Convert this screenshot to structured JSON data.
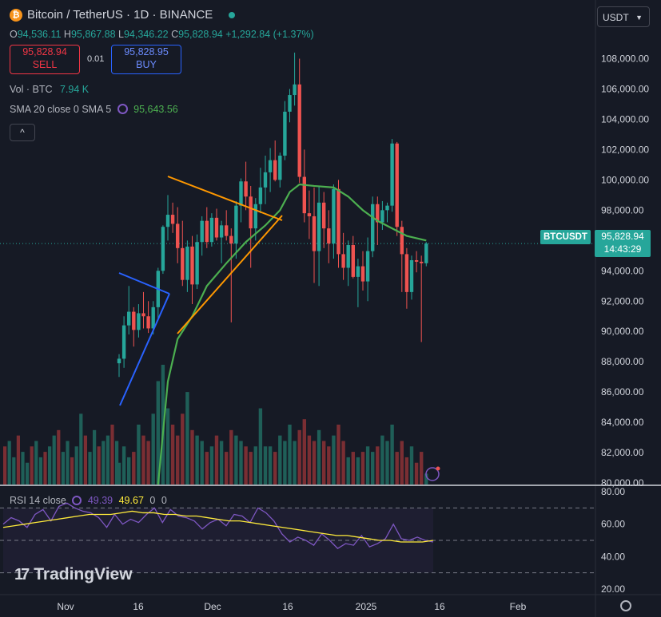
{
  "header": {
    "coin_glyph": "₿",
    "title": "Bitcoin / TetherUS · 1D · BINANCE",
    "ohlc": {
      "o_label": "O",
      "o": "94,536.11",
      "h_label": "H",
      "h": "95,867.88",
      "l_label": "L",
      "l": "94,346.22",
      "c_label": "C",
      "c": "95,828.94",
      "change": "+1,292.84 (+1.37%)"
    },
    "sell": {
      "price": "95,828.94",
      "label": "SELL"
    },
    "buy": {
      "price": "95,828.95",
      "label": "BUY"
    },
    "spread": "0.01",
    "vol_label": "Vol · BTC",
    "vol_value": "7.94 K",
    "sma_label": "SMA 20 close 0 SMA 5",
    "sma_value": "95,643.56",
    "collapse_glyph": "^"
  },
  "currency": {
    "value": "USDT"
  },
  "price_tag": {
    "symbol": "BTCUSDT",
    "price": "95,828.94",
    "countdown": "14:43:29"
  },
  "rsi": {
    "label": "RSI 14 close",
    "v1": "49.39",
    "v2": "49.67",
    "v3": "0",
    "v4": "0"
  },
  "logo": {
    "mark": "17",
    "text": "TradingView"
  },
  "colors": {
    "up": "#26a69a",
    "down": "#ef5350",
    "sma": "#4caf50",
    "rsi": "#7e57c2",
    "rsi_ma": "#ffeb3b",
    "bg": "#161a25"
  },
  "chart_data": [
    {
      "type": "candlestick",
      "title": "Bitcoin / TetherUS · 1D · BINANCE",
      "y_ticks": [
        "80,000.00",
        "82,000.00",
        "84,000.00",
        "86,000.00",
        "88,000.00",
        "90,000.00",
        "92,000.00",
        "94,000.00",
        "96,000.00",
        "98,000.00",
        "100,000.00",
        "102,000.00",
        "104,000.00",
        "106,000.00",
        "108,000.00"
      ],
      "y_tick_values": [
        80000,
        82000,
        84000,
        86000,
        88000,
        90000,
        92000,
        94000,
        96000,
        98000,
        100000,
        102000,
        104000,
        106000,
        108000
      ],
      "ylim": [
        79900,
        109500
      ],
      "x_ticks": [
        "Nov",
        "16",
        "Dec",
        "16",
        "2025",
        "16",
        "Feb"
      ],
      "grid": false,
      "candles_ohlc": [
        [
          87900,
          88500,
          87000,
          88200
        ],
        [
          88200,
          91000,
          87600,
          90400
        ],
        [
          90400,
          93000,
          89800,
          91300
        ],
        [
          91300,
          91600,
          89000,
          90100
        ],
        [
          90100,
          91800,
          89600,
          91200
        ],
        [
          91200,
          92600,
          90200,
          91000
        ],
        [
          91000,
          92000,
          89900,
          90200
        ],
        [
          90200,
          92000,
          89800,
          91600
        ],
        [
          91600,
          94200,
          90800,
          94000
        ],
        [
          94000,
          97000,
          93800,
          96900
        ],
        [
          96900,
          99000,
          96000,
          97700
        ],
        [
          97700,
          98500,
          96500,
          97100
        ],
        [
          97100,
          98200,
          94500,
          95500
        ],
        [
          95500,
          97300,
          93000,
          93400
        ],
        [
          93400,
          96000,
          92600,
          95600
        ],
        [
          95600,
          96300,
          91800,
          93100
        ],
        [
          93100,
          96400,
          92800,
          95900
        ],
        [
          95900,
          97600,
          95000,
          97300
        ],
        [
          97300,
          98200,
          95500,
          95900
        ],
        [
          95900,
          97800,
          95600,
          97500
        ],
        [
          97500,
          98100,
          96000,
          96200
        ],
        [
          96200,
          97300,
          94500,
          97000
        ],
        [
          97000,
          98000,
          96000,
          96300
        ],
        [
          96300,
          96800,
          90600,
          95800
        ],
        [
          95800,
          98600,
          94800,
          98300
        ],
        [
          98300,
          100100,
          97200,
          99900
        ],
        [
          99900,
          101200,
          98000,
          98900
        ],
        [
          98900,
          99600,
          94200,
          96800
        ],
        [
          96800,
          98800,
          96000,
          98400
        ],
        [
          98400,
          100800,
          97800,
          99500
        ],
        [
          99500,
          101600,
          98400,
          100500
        ],
        [
          100500,
          102100,
          99200,
          101300
        ],
        [
          101300,
          102600,
          99900,
          100000
        ],
        [
          100000,
          101800,
          99500,
          101600
        ],
        [
          101600,
          105200,
          101300,
          104500
        ],
        [
          104500,
          106000,
          103800,
          105600
        ],
        [
          105600,
          108400,
          104900,
          106300
        ],
        [
          106300,
          108000,
          99800,
          100200
        ],
        [
          100200,
          102000,
          97200,
          97800
        ],
        [
          97800,
          99300,
          96100,
          97600
        ],
        [
          97600,
          99500,
          93200,
          95300
        ],
        [
          95300,
          99600,
          93000,
          98500
        ],
        [
          98500,
          99200,
          95500,
          96800
        ],
        [
          96800,
          98000,
          94500,
          95800
        ],
        [
          95800,
          99700,
          94800,
          99400
        ],
        [
          99400,
          100000,
          94200,
          95100
        ],
        [
          95100,
          96500,
          93400,
          94200
        ],
        [
          94200,
          96000,
          93000,
          95700
        ],
        [
          95700,
          96300,
          93500,
          93600
        ],
        [
          93600,
          94800,
          91600,
          94300
        ],
        [
          94300,
          95300,
          92700,
          93300
        ],
        [
          93300,
          96200,
          92000,
          95300
        ],
        [
          95300,
          98900,
          94900,
          98400
        ],
        [
          98400,
          98900,
          95700,
          97200
        ],
        [
          97200,
          98600,
          96700,
          98000
        ],
        [
          98000,
          98500,
          97200,
          98300
        ],
        [
          98300,
          102700,
          97900,
          102400
        ],
        [
          102400,
          102500,
          96300,
          96900
        ],
        [
          96900,
          97300,
          92600,
          95100
        ],
        [
          95100,
          95500,
          91500,
          92600
        ],
        [
          92600,
          95000,
          92100,
          94700
        ],
        [
          94700,
          95300,
          93900,
          94600
        ],
        [
          94600,
          95000,
          89300,
          94500
        ],
        [
          94500,
          95900,
          94300,
          95800
        ]
      ],
      "sma": [
        {
          "i": 10,
          "v": 86700
        },
        {
          "i": 12,
          "v": 89500
        },
        {
          "i": 15,
          "v": 91000
        },
        {
          "i": 18,
          "v": 93000
        },
        {
          "i": 22,
          "v": 94500
        },
        {
          "i": 26,
          "v": 95900
        },
        {
          "i": 30,
          "v": 97000
        },
        {
          "i": 33,
          "v": 98000
        },
        {
          "i": 35,
          "v": 99200
        },
        {
          "i": 37,
          "v": 99700
        },
        {
          "i": 40,
          "v": 99600
        },
        {
          "i": 44,
          "v": 99500
        },
        {
          "i": 47,
          "v": 98900
        },
        {
          "i": 50,
          "v": 98000
        },
        {
          "i": 53,
          "v": 97300
        },
        {
          "i": 56,
          "v": 96800
        },
        {
          "i": 59,
          "v": 96300
        },
        {
          "i": 63,
          "v": 96000
        }
      ],
      "volume_bars": [
        4,
        7,
        5,
        6,
        11,
        9,
        8,
        13,
        19,
        22,
        14,
        11,
        9,
        13,
        17,
        10,
        9,
        8,
        6,
        7,
        9,
        8,
        6,
        10,
        9,
        8,
        7,
        6,
        7,
        14,
        7,
        7,
        6,
        9,
        8,
        11,
        8,
        10,
        12,
        9,
        8,
        10,
        8,
        7,
        9,
        11,
        8,
        5,
        6,
        5,
        6,
        7,
        6,
        7,
        9,
        8,
        11,
        6,
        8,
        5,
        7,
        4,
        6,
        2
      ]
    },
    {
      "type": "line",
      "title": "RSI 14 close",
      "y_ticks": [
        "20.00",
        "40.00",
        "60.00",
        "80.00"
      ],
      "y_tick_values": [
        20,
        40,
        60,
        80
      ],
      "ylim": [
        17,
        82
      ],
      "series": [
        {
          "name": "RSI",
          "values": [
            60,
            64,
            62,
            58,
            66,
            69,
            62,
            71,
            73,
            70,
            68,
            67,
            64,
            58,
            66,
            60,
            63,
            61,
            66,
            70,
            61,
            69,
            65,
            64,
            62,
            57,
            61,
            63,
            59,
            66,
            65,
            61,
            70,
            67,
            62,
            54,
            49,
            52,
            50,
            47,
            54,
            50,
            45,
            48,
            47,
            53,
            46,
            48,
            51,
            60,
            51,
            50,
            52,
            50,
            49
          ]
        },
        {
          "name": "RSI-based MA",
          "values": [
            58,
            59,
            60,
            61,
            62,
            63,
            64,
            65,
            66,
            66,
            66,
            67,
            68,
            67,
            67,
            66,
            66,
            65,
            65,
            64,
            63,
            62,
            62,
            61,
            60,
            59,
            58,
            57,
            56,
            55,
            54,
            53,
            53,
            52,
            51,
            50,
            50,
            49,
            49,
            49,
            50
          ]
        }
      ]
    }
  ]
}
